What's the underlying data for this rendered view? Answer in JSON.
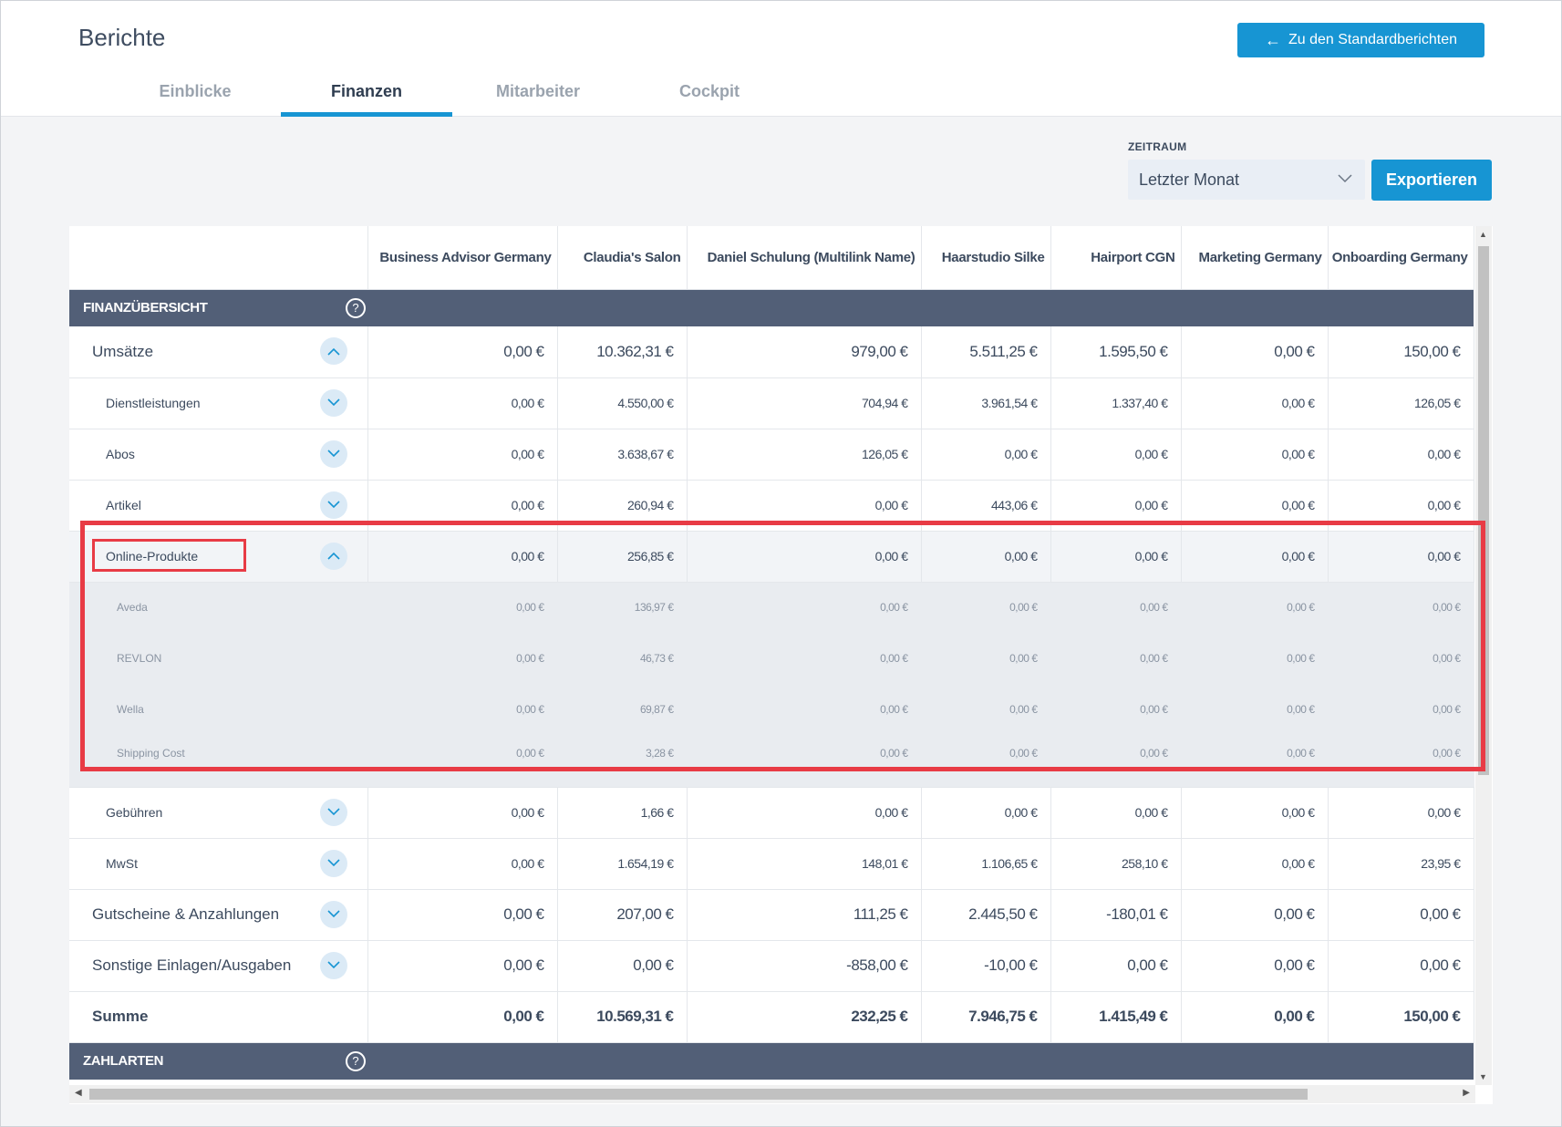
{
  "header": {
    "title": "Berichte",
    "back_button": "Zu den Standardberichten",
    "tabs": [
      "Einblicke",
      "Finanzen",
      "Mitarbeiter",
      "Cockpit"
    ],
    "active_tab": "Finanzen"
  },
  "filters": {
    "period_label": "ZEITRAUM",
    "period_value": "Letzter Monat",
    "export_label": "Exportieren"
  },
  "table": {
    "columns": [
      "Business Advisor Germany",
      "Claudia's Salon",
      "Daniel Schulung (Multilink Name)",
      "Haarstudio Silke",
      "Hairport CGN",
      "Marketing Germany",
      "Onboarding Germany"
    ],
    "section_finance": "FINANZÜBERSICHT",
    "section_payment": "ZAHLARTEN",
    "help_glyph": "?",
    "rows": [
      {
        "label": "Umsätze",
        "values": [
          "0,00 €",
          "10.362,31 €",
          "979,00 €",
          "5.511,25 €",
          "1.595,50 €",
          "0,00 €",
          "150,00 €"
        ]
      },
      {
        "label": "Dienstleistungen",
        "values": [
          "0,00 €",
          "4.550,00 €",
          "704,94 €",
          "3.961,54 €",
          "1.337,40 €",
          "0,00 €",
          "126,05 €"
        ]
      },
      {
        "label": "Abos",
        "values": [
          "0,00 €",
          "3.638,67 €",
          "126,05 €",
          "0,00 €",
          "0,00 €",
          "0,00 €",
          "0,00 €"
        ]
      },
      {
        "label": "Artikel",
        "values": [
          "0,00 €",
          "260,94 €",
          "0,00 €",
          "443,06 €",
          "0,00 €",
          "0,00 €",
          "0,00 €"
        ]
      },
      {
        "label": "Online-Produkte",
        "values": [
          "0,00 €",
          "256,85 €",
          "0,00 €",
          "0,00 €",
          "0,00 €",
          "0,00 €",
          "0,00 €"
        ]
      },
      {
        "label": "Aveda",
        "values": [
          "0,00 €",
          "136,97 €",
          "0,00 €",
          "0,00 €",
          "0,00 €",
          "0,00 €",
          "0,00 €"
        ]
      },
      {
        "label": "REVLON",
        "values": [
          "0,00 €",
          "46,73 €",
          "0,00 €",
          "0,00 €",
          "0,00 €",
          "0,00 €",
          "0,00 €"
        ]
      },
      {
        "label": "Wella",
        "values": [
          "0,00 €",
          "69,87 €",
          "0,00 €",
          "0,00 €",
          "0,00 €",
          "0,00 €",
          "0,00 €"
        ]
      },
      {
        "label": "Shipping Cost",
        "values": [
          "0,00 €",
          "3,28 €",
          "0,00 €",
          "0,00 €",
          "0,00 €",
          "0,00 €",
          "0,00 €"
        ]
      },
      {
        "label": "Gebühren",
        "values": [
          "0,00 €",
          "1,66 €",
          "0,00 €",
          "0,00 €",
          "0,00 €",
          "0,00 €",
          "0,00 €"
        ]
      },
      {
        "label": "MwSt",
        "values": [
          "0,00 €",
          "1.654,19 €",
          "148,01 €",
          "1.106,65 €",
          "258,10 €",
          "0,00 €",
          "23,95 €"
        ]
      },
      {
        "label": "Gutscheine & Anzahlungen",
        "values": [
          "0,00 €",
          "207,00 €",
          "111,25 €",
          "2.445,50 €",
          "-180,01 €",
          "0,00 €",
          "0,00 €"
        ]
      },
      {
        "label": "Sonstige Einlagen/Ausgaben",
        "values": [
          "0,00 €",
          "0,00 €",
          "-858,00 €",
          "-10,00 €",
          "0,00 €",
          "0,00 €",
          "0,00 €"
        ]
      },
      {
        "label": "Summe",
        "values": [
          "0,00 €",
          "10.569,31 €",
          "232,25 €",
          "7.946,75 €",
          "1.415,49 €",
          "0,00 €",
          "150,00 €"
        ]
      }
    ]
  },
  "colors": {
    "accent": "#1795d3",
    "section_header": "#525f77",
    "highlight": "#e83b45"
  }
}
